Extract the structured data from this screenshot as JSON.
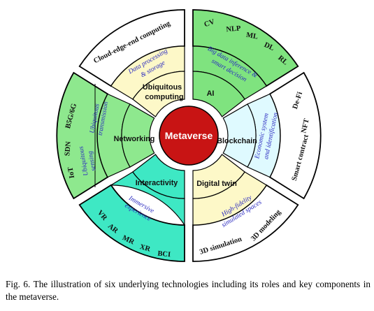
{
  "center": {
    "label": "Metaverse",
    "color": "#c81414"
  },
  "sectors": [
    {
      "id": "ai",
      "inner": [
        "AI"
      ],
      "middle": [
        "Big data inference &",
        "smart decision"
      ],
      "outer": [
        "CV",
        "NLP",
        "ML",
        "DL",
        "RL"
      ],
      "color": "#7fe37f"
    },
    {
      "id": "blockchain",
      "inner": [
        "Blockchain"
      ],
      "middle": [
        "Economic system",
        "and identification"
      ],
      "outer": [
        "NFT",
        "De-Fi",
        "Smart contract"
      ],
      "color": "#dffaff"
    },
    {
      "id": "digital-twin",
      "inner": [
        "Digital twin"
      ],
      "middle": [
        "High-fidelity",
        "simulated spaces"
      ],
      "outer": [
        "3D modeling",
        "3D simulation"
      ],
      "color": "#fdf8c8"
    },
    {
      "id": "interactivity",
      "inner": [
        "Interactivity"
      ],
      "middle": [
        "Immersive",
        "experience"
      ],
      "outer": [
        "VR",
        "AR",
        "MR",
        "XR",
        "BCI"
      ],
      "color": "#3ee8c4"
    },
    {
      "id": "networking",
      "inner": [
        "Networking"
      ],
      "middle": [
        "Ubiquitous",
        "transmission",
        "Ubiquitous",
        "sensing"
      ],
      "outer": [
        "B5G/6G",
        "SDN",
        "IoT"
      ],
      "color": "#8ee88e"
    },
    {
      "id": "ubiquitous-computing",
      "inner": [
        "Ubiquitous",
        "computing"
      ],
      "middle": [
        "Data processing",
        "& storage"
      ],
      "outer": [
        "Cloud-edge-end computing"
      ],
      "color": "#fdf8c8"
    }
  ],
  "caption": "Fig. 6.    The illustration of six underlying technologies including its roles and key components in the metaverse."
}
